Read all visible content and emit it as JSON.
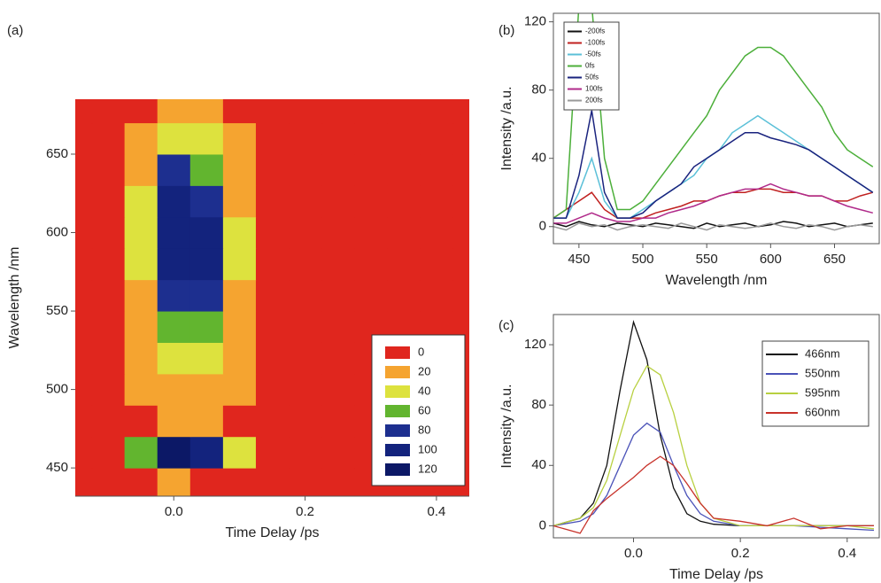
{
  "chart_data": [
    {
      "type": "heatmap",
      "panel": "(a)",
      "xlabel": "Time Delay /ps",
      "ylabel": "Wavelength /nm",
      "xlim": [
        -0.15,
        0.45
      ],
      "xticks": [
        {
          "value": 0,
          "label": "0.0"
        },
        0.2,
        0.4
      ],
      "ylim": [
        432,
        685
      ],
      "yticks": [
        450,
        500,
        550,
        600,
        650
      ],
      "x": [
        -0.15,
        -0.1,
        -0.05,
        0,
        0.05,
        0.1,
        0.15,
        0.2,
        0.25,
        0.3,
        0.35,
        0.4,
        0.45
      ],
      "y": [
        440,
        460,
        480,
        500,
        520,
        540,
        560,
        580,
        600,
        620,
        640,
        660,
        680
      ],
      "z": [
        [
          5,
          5,
          10,
          20,
          15,
          5,
          5,
          5,
          5,
          0,
          0,
          0,
          0
        ],
        [
          5,
          5,
          60,
          120,
          110,
          40,
          10,
          5,
          5,
          0,
          0,
          0,
          0
        ],
        [
          5,
          5,
          15,
          30,
          25,
          15,
          5,
          5,
          5,
          5,
          5,
          5,
          5
        ],
        [
          5,
          5,
          20,
          35,
          30,
          20,
          10,
          5,
          5,
          5,
          5,
          5,
          5
        ],
        [
          5,
          10,
          25,
          40,
          40,
          25,
          10,
          5,
          5,
          5,
          5,
          5,
          5
        ],
        [
          5,
          10,
          30,
          60,
          60,
          30,
          10,
          5,
          5,
          5,
          5,
          5,
          5
        ],
        [
          5,
          10,
          35,
          90,
          90,
          35,
          10,
          5,
          5,
          5,
          5,
          5,
          5
        ],
        [
          5,
          10,
          40,
          105,
          100,
          40,
          10,
          5,
          5,
          5,
          5,
          5,
          5
        ],
        [
          5,
          10,
          40,
          110,
          105,
          40,
          10,
          5,
          5,
          5,
          5,
          5,
          5
        ],
        [
          5,
          10,
          40,
          100,
          95,
          35,
          10,
          5,
          5,
          5,
          5,
          5,
          5
        ],
        [
          5,
          10,
          35,
          80,
          70,
          30,
          10,
          5,
          5,
          5,
          5,
          5,
          5
        ],
        [
          5,
          10,
          25,
          45,
          40,
          20,
          10,
          5,
          5,
          5,
          5,
          5,
          5
        ],
        [
          5,
          5,
          15,
          25,
          20,
          15,
          5,
          5,
          5,
          5,
          5,
          5,
          5
        ]
      ],
      "levels": [
        0,
        20,
        40,
        60,
        80,
        100,
        120
      ],
      "level_colors": [
        "#e0261e",
        "#f5a430",
        "#dde23e",
        "#62b52f",
        "#1d2f8f",
        "#13237d",
        "#0c1866"
      ]
    },
    {
      "type": "line",
      "panel": "(b)",
      "xlabel": "Wavelength /nm",
      "ylabel": "Intensity /a.u.",
      "xlim": [
        430,
        685
      ],
      "xticks": [
        450,
        500,
        550,
        600,
        650
      ],
      "ylim": [
        -10,
        125
      ],
      "yticks": [
        0,
        40,
        80,
        120
      ],
      "legend": "top-left",
      "x": [
        430,
        440,
        450,
        460,
        470,
        480,
        490,
        500,
        510,
        520,
        530,
        540,
        550,
        560,
        570,
        580,
        590,
        600,
        610,
        620,
        630,
        640,
        650,
        660,
        670,
        680
      ],
      "series": [
        {
          "name": "-200fs",
          "color": "#111111",
          "values": [
            2,
            0,
            3,
            1,
            0,
            2,
            1,
            0,
            2,
            1,
            0,
            -1,
            2,
            0,
            1,
            2,
            0,
            1,
            3,
            2,
            0,
            1,
            2,
            0,
            1,
            2
          ]
        },
        {
          "name": "-100fs",
          "color": "#c0201f",
          "values": [
            5,
            10,
            15,
            20,
            10,
            5,
            5,
            5,
            8,
            10,
            12,
            15,
            15,
            18,
            20,
            20,
            22,
            22,
            20,
            20,
            18,
            18,
            15,
            15,
            18,
            20
          ]
        },
        {
          "name": "-50fs",
          "color": "#5bc0d8",
          "values": [
            5,
            5,
            20,
            40,
            15,
            5,
            5,
            10,
            15,
            20,
            25,
            30,
            40,
            45,
            55,
            60,
            65,
            60,
            55,
            50,
            45,
            40,
            35,
            30,
            25,
            20
          ]
        },
        {
          "name": "0fs",
          "color": "#4caf3a",
          "values": [
            5,
            10,
            130,
            130,
            40,
            10,
            10,
            15,
            25,
            35,
            45,
            55,
            65,
            80,
            90,
            100,
            105,
            105,
            100,
            90,
            80,
            70,
            55,
            45,
            40,
            35
          ]
        },
        {
          "name": "50fs",
          "color": "#1a237e",
          "values": [
            5,
            5,
            30,
            68,
            20,
            5,
            5,
            8,
            15,
            20,
            25,
            35,
            40,
            45,
            50,
            55,
            55,
            52,
            50,
            48,
            45,
            40,
            35,
            30,
            25,
            20
          ]
        },
        {
          "name": "100fs",
          "color": "#b02a8a",
          "values": [
            2,
            2,
            5,
            8,
            5,
            3,
            3,
            5,
            5,
            8,
            10,
            12,
            15,
            18,
            20,
            22,
            22,
            25,
            22,
            20,
            18,
            18,
            15,
            12,
            10,
            8
          ]
        },
        {
          "name": "200fs",
          "color": "#999999",
          "values": [
            0,
            -2,
            2,
            0,
            1,
            -2,
            0,
            1,
            0,
            -1,
            2,
            0,
            -2,
            1,
            0,
            -1,
            0,
            2,
            0,
            -1,
            1,
            0,
            -2,
            0,
            1,
            0
          ]
        }
      ]
    },
    {
      "type": "line",
      "panel": "(c)",
      "xlabel": "Time Delay /ps",
      "ylabel": "Intensity /a.u.",
      "xlim": [
        -0.15,
        0.46
      ],
      "xticks": [
        {
          "value": 0,
          "label": "0.0"
        },
        0.2,
        0.4
      ],
      "ylim": [
        -8,
        140
      ],
      "yticks": [
        0,
        40,
        80,
        120
      ],
      "legend": "top-right",
      "x": [
        -0.15,
        -0.1,
        -0.075,
        -0.05,
        -0.025,
        0,
        0.025,
        0.05,
        0.075,
        0.1,
        0.125,
        0.15,
        0.2,
        0.25,
        0.3,
        0.35,
        0.4,
        0.45
      ],
      "series": [
        {
          "name": "466nm",
          "color": "#111111",
          "values": [
            0,
            5,
            15,
            40,
            90,
            135,
            110,
            60,
            25,
            8,
            3,
            1,
            0,
            0,
            0,
            0,
            0,
            0
          ]
        },
        {
          "name": "550nm",
          "color": "#4a52b8",
          "values": [
            0,
            3,
            8,
            20,
            40,
            60,
            68,
            62,
            40,
            20,
            8,
            3,
            0,
            0,
            0,
            -1,
            -2,
            -3
          ]
        },
        {
          "name": "595nm",
          "color": "#b8d040",
          "values": [
            0,
            5,
            12,
            30,
            60,
            90,
            106,
            100,
            75,
            40,
            15,
            5,
            0,
            0,
            0,
            0,
            0,
            -2
          ]
        },
        {
          "name": "660nm",
          "color": "#c8322a",
          "values": [
            0,
            -5,
            10,
            18,
            25,
            32,
            40,
            46,
            40,
            28,
            15,
            5,
            3,
            0,
            5,
            -2,
            0,
            0
          ]
        }
      ]
    }
  ]
}
